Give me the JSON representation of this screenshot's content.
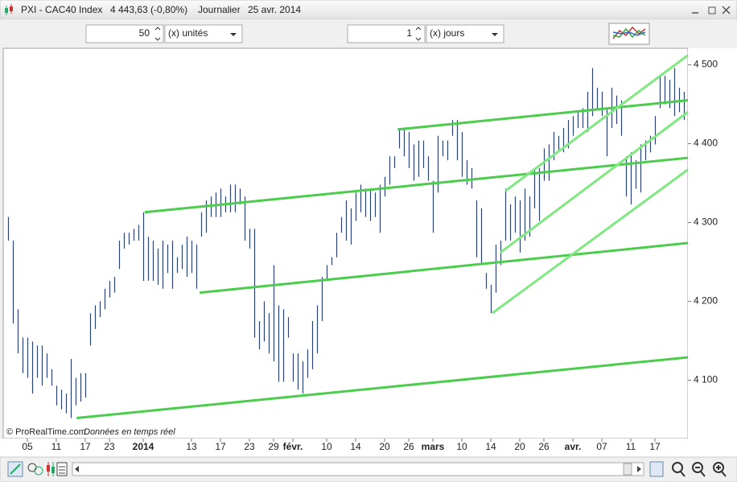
{
  "window": {
    "title": "PXI - CAC40 Index",
    "quote": "4 443,63 (-0,80%)",
    "period": "Journalier",
    "date": "25 avr. 2014"
  },
  "toolbar": {
    "units_count": "50",
    "units_label": "(x) unités",
    "days_count": "1",
    "days_label": "(x) jours"
  },
  "chart_data": {
    "type": "hlbar",
    "high": [
      4307,
      4277,
      4190,
      4154,
      4154,
      4149,
      4144,
      4144,
      4134,
      4114,
      4093,
      4088,
      4083,
      4127,
      4103,
      4109,
      4109,
      4185,
      4195,
      4200,
      4216,
      4226,
      4231,
      4277,
      4287,
      4287,
      4292,
      4297,
      4313,
      4282,
      4277,
      4267,
      4277,
      4272,
      4277,
      4256,
      4272,
      4282,
      4277,
      4272,
      4313,
      4328,
      4333,
      4338,
      4343,
      4333,
      4348,
      4348,
      4343,
      4333,
      4292,
      4292,
      4175,
      4200,
      4185,
      4246,
      4195,
      4190,
      4180,
      4134,
      4134,
      4124,
      4139,
      4175,
      4195,
      4231,
      4246,
      4256,
      4287,
      4307,
      4328,
      4318,
      4338,
      4348,
      4343,
      4343,
      4338,
      4348,
      4358,
      4384,
      4384,
      4420,
      4420,
      4415,
      4399,
      4404,
      4404,
      4384,
      4353,
      4410,
      4404,
      4404,
      4430,
      4430,
      4415,
      4379,
      4369,
      4328,
      4318,
      4236,
      4221,
      4272,
      4277,
      4343,
      4323,
      4333,
      4328,
      4343,
      4333,
      4369,
      4369,
      4394,
      4399,
      4415,
      4410,
      4420,
      4430,
      4435,
      4440,
      4445,
      4466,
      4496,
      4471,
      4466,
      4445,
      4471,
      4461,
      4455,
      4384,
      4389,
      4379,
      4399,
      4404,
      4410,
      4435,
      4486,
      4486,
      4481,
      4496,
      4471,
      4466
    ],
    "low": [
      4277,
      4172,
      4134,
      4109,
      4103,
      4083,
      4103,
      4093,
      4103,
      4093,
      4068,
      4063,
      4058,
      4052,
      4068,
      4073,
      4078,
      4144,
      4165,
      4180,
      4190,
      4205,
      4211,
      4241,
      4267,
      4272,
      4277,
      4277,
      4226,
      4226,
      4226,
      4221,
      4216,
      4236,
      4216,
      4236,
      4241,
      4231,
      4236,
      4216,
      4282,
      4287,
      4307,
      4307,
      4307,
      4313,
      4313,
      4313,
      4323,
      4277,
      4267,
      4154,
      4139,
      4149,
      4134,
      4124,
      4098,
      4098,
      4154,
      4098,
      4088,
      4083,
      4103,
      4114,
      4134,
      4175,
      4226,
      4246,
      4256,
      4287,
      4277,
      4272,
      4302,
      4313,
      4307,
      4302,
      4307,
      4287,
      4333,
      4348,
      4369,
      4394,
      4384,
      4369,
      4353,
      4358,
      4369,
      4353,
      4287,
      4338,
      4384,
      4379,
      4410,
      4379,
      4358,
      4348,
      4343,
      4256,
      4246,
      4216,
      4185,
      4211,
      4246,
      4277,
      4277,
      4287,
      4262,
      4277,
      4282,
      4318,
      4302,
      4353,
      4353,
      4379,
      4389,
      4389,
      4394,
      4410,
      4420,
      4420,
      4415,
      4435,
      4445,
      4435,
      4384,
      4420,
      4425,
      4410,
      4333,
      4323,
      4343,
      4338,
      4379,
      4389,
      4399,
      4445,
      4450,
      4445,
      4435,
      4440,
      4430
    ],
    "color": "#2d4370",
    "ylim": [
      4026,
      4521
    ],
    "yticks": [
      {
        "value": 4100,
        "label": "4 100"
      },
      {
        "value": 4200,
        "label": "4 200"
      },
      {
        "value": 4300,
        "label": "4 300"
      },
      {
        "value": 4400,
        "label": "4 400"
      },
      {
        "value": 4500,
        "label": "4 500"
      }
    ],
    "xticks": [
      {
        "value": 4,
        "label": "05"
      },
      {
        "value": 10,
        "label": "11"
      },
      {
        "value": 16,
        "label": "17"
      },
      {
        "value": 21,
        "label": "23"
      },
      {
        "value": 38,
        "label": "13"
      },
      {
        "value": 44,
        "label": "17"
      },
      {
        "value": 50,
        "label": "23"
      },
      {
        "value": 55,
        "label": "29"
      },
      {
        "value": 66,
        "label": "10"
      },
      {
        "value": 72,
        "label": "14"
      },
      {
        "value": 78,
        "label": "20"
      },
      {
        "value": 83,
        "label": "26"
      },
      {
        "value": 94,
        "label": "10"
      },
      {
        "value": 100,
        "label": "14"
      },
      {
        "value": 106,
        "label": "20"
      },
      {
        "value": 111,
        "label": "26"
      },
      {
        "value": 123,
        "label": "07"
      },
      {
        "value": 129,
        "label": "11"
      },
      {
        "value": 134,
        "label": "17"
      }
    ],
    "xmajorticks": [
      {
        "value": 28,
        "label": "2014"
      },
      {
        "value": 59,
        "label": "févr."
      },
      {
        "value": 88,
        "label": "mars"
      },
      {
        "value": 117,
        "label": "avr."
      }
    ],
    "trendlines": [
      {
        "start": [
          14.2,
          4052
        ],
        "end": [
          140.8,
          4129
        ],
        "color": "#4ccc4c"
      },
      {
        "start": [
          28.3,
          4313
        ],
        "end": [
          140.8,
          4382
        ],
        "color": "#4ccc4c"
      },
      {
        "start": [
          39.7,
          4211
        ],
        "end": [
          140.8,
          4274
        ],
        "color": "#4ccc4c"
      },
      {
        "start": [
          80.7,
          4418
        ],
        "end": [
          140.8,
          4455
        ],
        "color": "#4ccc4c"
      },
      {
        "start": [
          100.3,
          4185
        ],
        "end": [
          140.8,
          4367
        ],
        "color": "#80e880"
      },
      {
        "start": [
          102,
          4262
        ],
        "end": [
          140.8,
          4440
        ],
        "color": "#80e880"
      },
      {
        "start": [
          103,
          4340
        ],
        "end": [
          140.8,
          4512
        ],
        "color": "#80e880"
      }
    ],
    "credit": "© ProRealTime.com",
    "note": "Données en temps réel"
  }
}
